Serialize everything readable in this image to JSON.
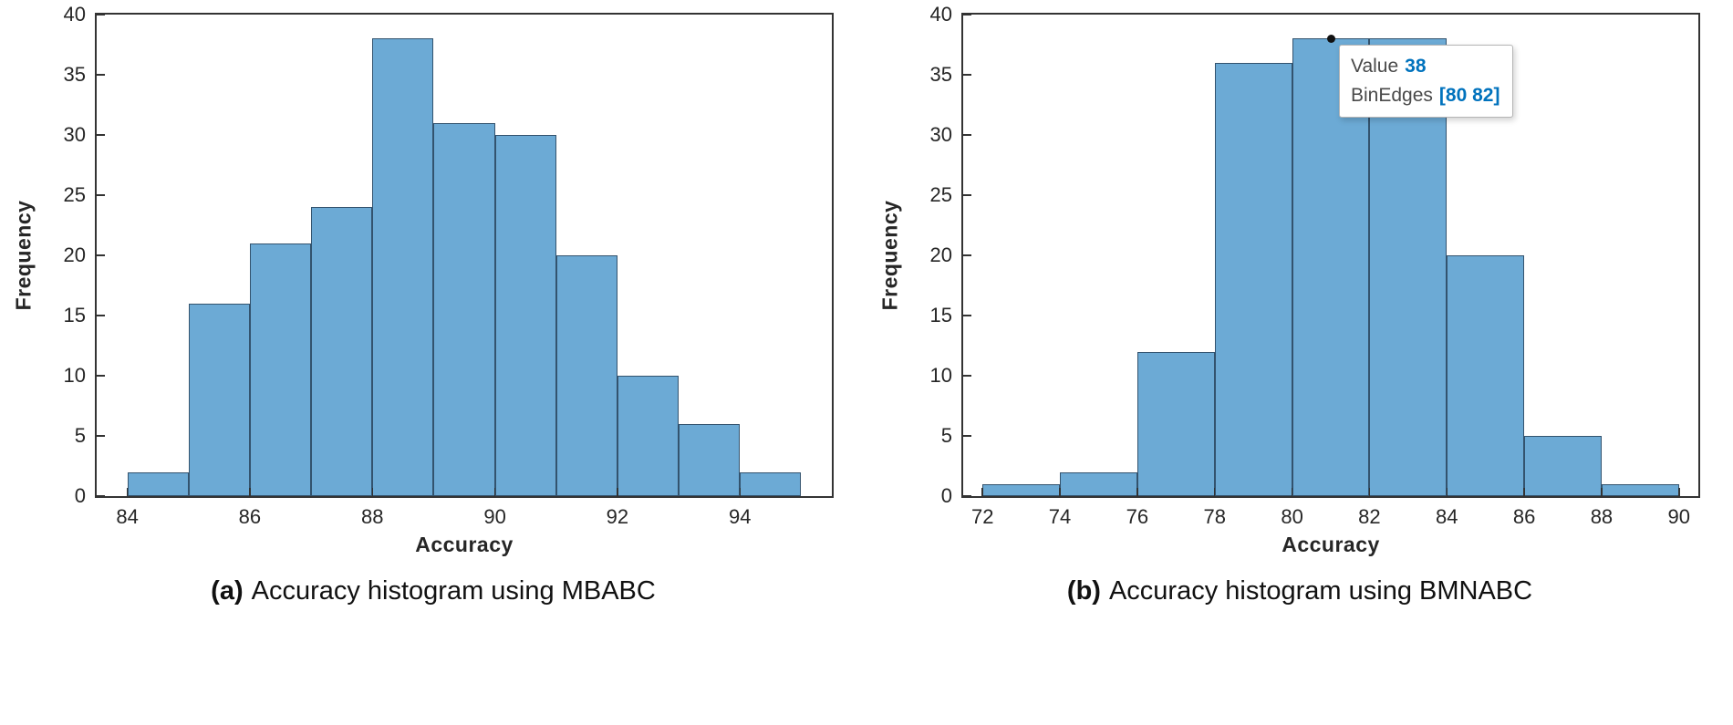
{
  "figure": {
    "background": "#ffffff",
    "axis_color": "#333333"
  },
  "chart_data": [
    {
      "type": "bar",
      "panel": "a",
      "caption": {
        "prefix": "(a)",
        "text": "Accuracy histogram using MBABC"
      },
      "xlabel": "Accuracy",
      "ylabel": "Frequency",
      "bin_edges": [
        84,
        85,
        86,
        87,
        88,
        89,
        90,
        91,
        92,
        93,
        94,
        95
      ],
      "values": [
        2,
        16,
        21,
        24,
        38,
        31,
        30,
        20,
        10,
        6,
        2
      ],
      "xlim": [
        83.5,
        95.5
      ],
      "ylim": [
        0,
        40
      ],
      "xticks": [
        84,
        86,
        88,
        90,
        92,
        94
      ],
      "yticks": [
        0,
        5,
        10,
        15,
        20,
        25,
        30,
        35,
        40
      ],
      "bar_fill": "#6caad5",
      "bar_edge": "#33536e",
      "axis_color": "#333333"
    },
    {
      "type": "bar",
      "panel": "b",
      "caption": {
        "prefix": "(b)",
        "text": "Accuracy histogram using BMNABC"
      },
      "xlabel": "Accuracy",
      "ylabel": "Frequency",
      "bin_edges": [
        72,
        74,
        76,
        78,
        80,
        82,
        84,
        86,
        88,
        90
      ],
      "values": [
        1,
        2,
        12,
        36,
        38,
        38,
        20,
        5,
        1
      ],
      "xlim": [
        71.5,
        90.5
      ],
      "ylim": [
        0,
        40
      ],
      "xticks": [
        72,
        74,
        76,
        78,
        80,
        82,
        84,
        86,
        88,
        90
      ],
      "yticks": [
        0,
        5,
        10,
        15,
        20,
        25,
        30,
        35,
        40
      ],
      "bar_fill": "#6caad5",
      "bar_edge": "#33536e",
      "axis_color": "#333333",
      "tooltip": {
        "rows": [
          {
            "label": "Value",
            "value": "38"
          },
          {
            "label": "BinEdges",
            "value": "[80 82]"
          }
        ],
        "anchor_x": 81,
        "anchor_y": 38,
        "value_color": "#0072bd",
        "background": "#ffffff",
        "border_color": "#b5b5b5"
      }
    }
  ]
}
